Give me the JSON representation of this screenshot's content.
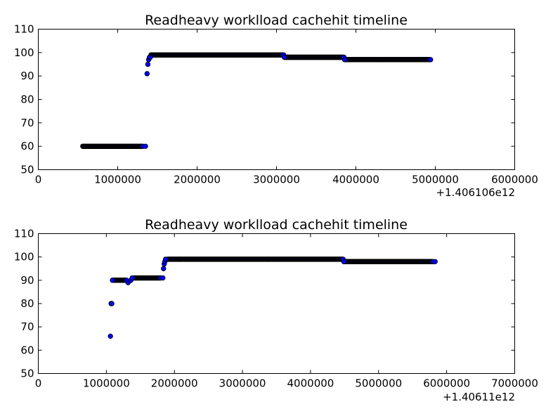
{
  "chart_data": [
    {
      "type": "scatter",
      "title": "Readheavy worklload cachehit timeline",
      "xlabel": "",
      "ylabel": "",
      "x_offset_label": "+1.406106e12",
      "xlim": [
        0,
        6000000
      ],
      "ylim": [
        50,
        110
      ],
      "xticks": [
        "0",
        "1000000",
        "2000000",
        "3000000",
        "4000000",
        "5000000",
        "6000000"
      ],
      "yticks": [
        "50",
        "60",
        "70",
        "80",
        "90",
        "100",
        "110"
      ],
      "grid": false,
      "segments": [
        {
          "x_start": 560000,
          "x_end": 1320000,
          "y": 60,
          "step": 6000
        },
        {
          "x_start": 1420000,
          "x_end": 3080000,
          "y": 99,
          "step": 6000
        },
        {
          "x_start": 3100000,
          "x_end": 3840000,
          "y": 98,
          "step": 6000
        },
        {
          "x_start": 3860000,
          "x_end": 4930000,
          "y": 97,
          "step": 6000
        }
      ],
      "points": [
        {
          "x": 1350000,
          "y": 60
        },
        {
          "x": 1370000,
          "y": 91
        },
        {
          "x": 1380000,
          "y": 95
        },
        {
          "x": 1390000,
          "y": 97
        },
        {
          "x": 1400000,
          "y": 98
        },
        {
          "x": 1410000,
          "y": 98
        },
        {
          "x": 3090000,
          "y": 99
        },
        {
          "x": 3100000,
          "y": 98
        },
        {
          "x": 3850000,
          "y": 98
        },
        {
          "x": 3860000,
          "y": 97
        },
        {
          "x": 4940000,
          "y": 97
        }
      ]
    },
    {
      "type": "scatter",
      "title": "Readheavy worklload cachehit timeline",
      "xlabel": "",
      "ylabel": "",
      "x_offset_label": "+1.40611e12",
      "xlim": [
        0,
        7000000
      ],
      "ylim": [
        50,
        110
      ],
      "xticks": [
        "0",
        "1000000",
        "2000000",
        "3000000",
        "4000000",
        "5000000",
        "6000000",
        "7000000"
      ],
      "yticks": [
        "50",
        "60",
        "70",
        "80",
        "90",
        "100",
        "110"
      ],
      "grid": false,
      "segments": [
        {
          "x_start": 1100000,
          "x_end": 1300000,
          "y": 90,
          "step": 7000
        },
        {
          "x_start": 1400000,
          "x_end": 1800000,
          "y": 91,
          "step": 7000
        },
        {
          "x_start": 1900000,
          "x_end": 4470000,
          "y": 99,
          "step": 7000
        },
        {
          "x_start": 4490000,
          "x_end": 5800000,
          "y": 98,
          "step": 7000
        }
      ],
      "points": [
        {
          "x": 1060000,
          "y": 66
        },
        {
          "x": 1070000,
          "y": 80
        },
        {
          "x": 1080000,
          "y": 80
        },
        {
          "x": 1090000,
          "y": 90
        },
        {
          "x": 1320000,
          "y": 89
        },
        {
          "x": 1360000,
          "y": 90
        },
        {
          "x": 1380000,
          "y": 91
        },
        {
          "x": 1830000,
          "y": 91
        },
        {
          "x": 1840000,
          "y": 95
        },
        {
          "x": 1850000,
          "y": 97
        },
        {
          "x": 1860000,
          "y": 98
        },
        {
          "x": 1870000,
          "y": 99
        },
        {
          "x": 4480000,
          "y": 99
        },
        {
          "x": 4490000,
          "y": 98
        },
        {
          "x": 5830000,
          "y": 98
        }
      ]
    }
  ]
}
